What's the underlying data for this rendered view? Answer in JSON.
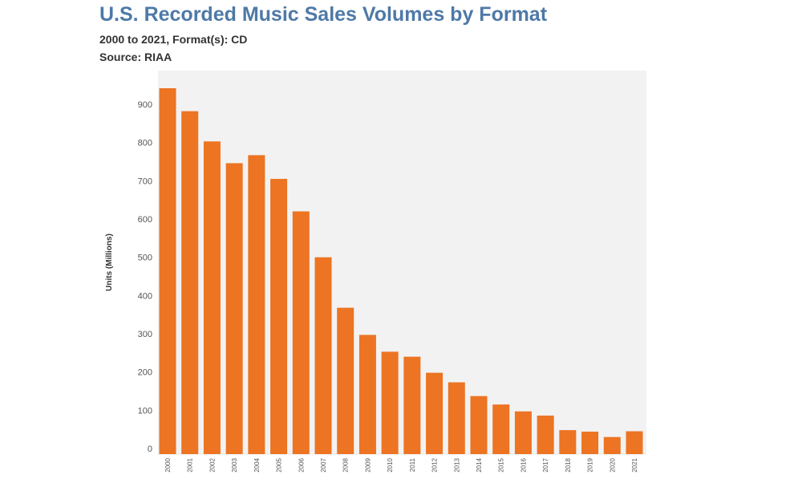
{
  "header": {
    "title": "U.S. Recorded Music Sales Volumes by Format",
    "subtitle": "2000 to 2021, Format(s): CD",
    "source": "Source: RIAA"
  },
  "colors": {
    "bar": "#ec7423",
    "plot_background": "#f2f2f2",
    "title": "#4e79a7"
  },
  "chart_data": {
    "type": "bar",
    "title": "U.S. Recorded Music Sales Volumes by Format",
    "subtitle": "2000 to 2021, Format(s): CD",
    "source": "Source: RIAA",
    "xlabel": "",
    "ylabel": "Units (Millions)",
    "ylim": [
      0,
      950
    ],
    "yticks": [
      0,
      100,
      200,
      300,
      400,
      500,
      600,
      700,
      800,
      900
    ],
    "grid": false,
    "categories": [
      "2000",
      "2001",
      "2002",
      "2003",
      "2004",
      "2005",
      "2006",
      "2007",
      "2008",
      "2009",
      "2010",
      "2011",
      "2012",
      "2013",
      "2014",
      "2015",
      "2016",
      "2017",
      "2018",
      "2019",
      "2020",
      "2021"
    ],
    "values": [
      942,
      882,
      803,
      746,
      767,
      705,
      620,
      500,
      368,
      297,
      253,
      240,
      198,
      173,
      137,
      115,
      97,
      86,
      48,
      44,
      30,
      45
    ]
  }
}
